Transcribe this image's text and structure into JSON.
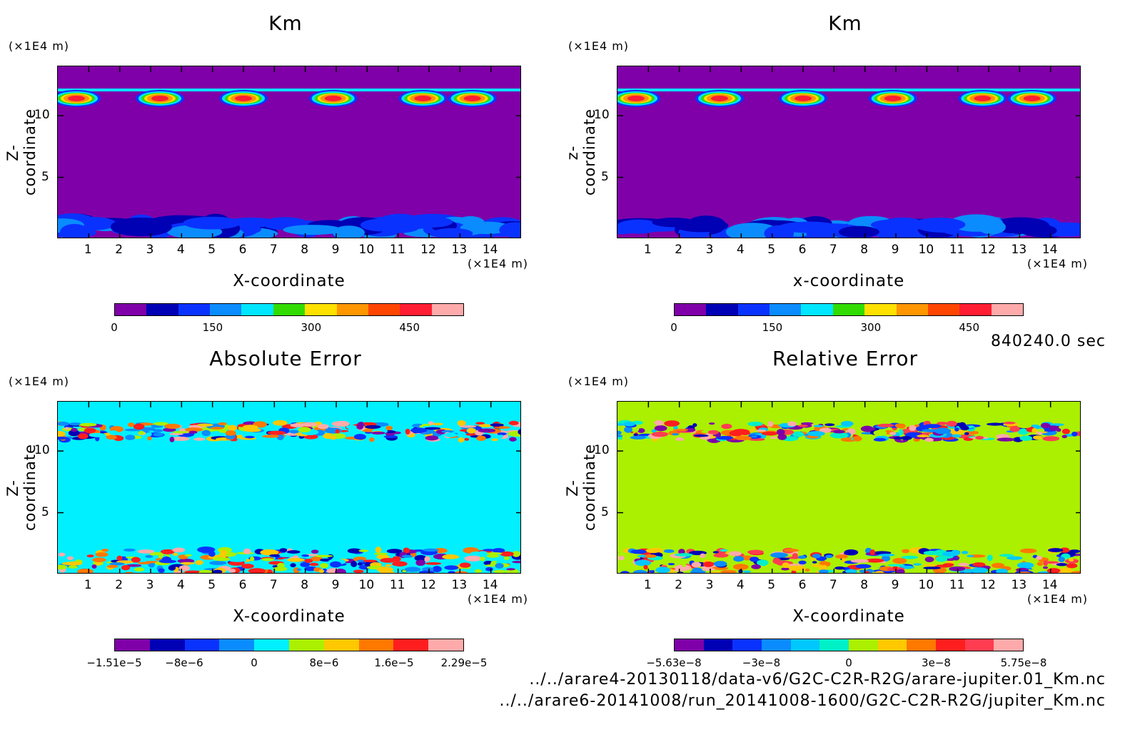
{
  "time_label": "840240.0 sec",
  "files": [
    "../../arare4-20130118/data-v6/G2C-C2R-R2G/arare-jupiter.01_Km.nc",
    "../../arare6-20141008/run_20141008-1600/G2C-C2R-R2G/jupiter_Km.nc"
  ],
  "chart_data": [
    {
      "type": "heatmap",
      "title": "Km",
      "xlabel": "X-coordinate",
      "ylabel": "Z-coordinate",
      "x_scale_label": "(×1E4 m)",
      "y_scale_label": "(×1E4 m)",
      "xlim": [
        0,
        15
      ],
      "ylim": [
        0,
        14
      ],
      "xticks": [
        1,
        2,
        3,
        4,
        5,
        6,
        7,
        8,
        9,
        10,
        11,
        12,
        13,
        14
      ],
      "yticks": [
        5,
        10
      ],
      "background": "#7f00a8",
      "colorbar": {
        "colors": [
          "#7f00a8",
          "#0000b4",
          "#0a32ff",
          "#0a8cff",
          "#00e6ff",
          "#32dc00",
          "#ffe100",
          "#ff9600",
          "#ff4600",
          "#ff1e32",
          "#ffaaaa"
        ],
        "ticks": [
          "0",
          "150",
          "300",
          "450"
        ]
      },
      "features": "convective plumes near z≈11–12, blue layer below z≈2"
    },
    {
      "type": "heatmap",
      "title": "Km",
      "xlabel": "x-coordinate",
      "ylabel": "z-coordinate",
      "x_scale_label": "(×1E4 m)",
      "y_scale_label": "(×1E4 m)",
      "xlim": [
        0,
        15
      ],
      "ylim": [
        0,
        14
      ],
      "xticks": [
        1,
        2,
        3,
        4,
        5,
        6,
        7,
        8,
        9,
        10,
        11,
        12,
        13,
        14
      ],
      "yticks": [
        5,
        10
      ],
      "background": "#7f00a8",
      "colorbar": {
        "colors": [
          "#7f00a8",
          "#0000b4",
          "#0a32ff",
          "#0a8cff",
          "#00e6ff",
          "#32dc00",
          "#ffe100",
          "#ff9600",
          "#ff4600",
          "#ff1e32",
          "#ffaaaa"
        ],
        "ticks": [
          "0",
          "150",
          "300",
          "450"
        ]
      },
      "features": "convective plumes near z≈11–12, blue layer below z≈2"
    },
    {
      "type": "heatmap",
      "title": "Absolute Error",
      "xlabel": "X-coordinate",
      "ylabel": "Z-coordinate",
      "x_scale_label": "(×1E4 m)",
      "y_scale_label": "(×1E4 m)",
      "xlim": [
        0,
        15
      ],
      "ylim": [
        0,
        14
      ],
      "xticks": [
        1,
        2,
        3,
        4,
        5,
        6,
        7,
        8,
        9,
        10,
        11,
        12,
        13,
        14
      ],
      "yticks": [
        5,
        10
      ],
      "background": "#00f0ff",
      "colorbar": {
        "colors": [
          "#7f00a8",
          "#0000b4",
          "#0a32ff",
          "#0a8cff",
          "#00f0ff",
          "#aaf000",
          "#ffc800",
          "#ff7800",
          "#ff1e1e",
          "#ffaaaa"
        ],
        "ticks": [
          "−1.51e−5",
          "−8e−6",
          "0",
          "8e−6",
          "1.6e−5",
          "2.29e−5"
        ]
      },
      "features": "noisy error bands near z≈11–12 and z≈0–2"
    },
    {
      "type": "heatmap",
      "title": "Relative Error",
      "xlabel": "X-coordinate",
      "ylabel": "Z-coordinate",
      "x_scale_label": "(×1E4 m)",
      "y_scale_label": "(×1E4 m)",
      "xlim": [
        0,
        15
      ],
      "ylim": [
        0,
        14
      ],
      "xticks": [
        1,
        2,
        3,
        4,
        5,
        6,
        7,
        8,
        9,
        10,
        11,
        12,
        13,
        14
      ],
      "yticks": [
        5,
        10
      ],
      "background": "#aaf000",
      "colorbar": {
        "colors": [
          "#7f00a8",
          "#0000b4",
          "#0a32ff",
          "#0a8cff",
          "#00c8ff",
          "#00f0c8",
          "#aaf000",
          "#ffc800",
          "#ff7800",
          "#ff1e1e",
          "#ff3c50",
          "#ffaaaa"
        ],
        "ticks": [
          "−5.63e−8",
          "−3e−8",
          "0",
          "3e−8",
          "5.75e−8"
        ]
      },
      "features": "noisy error bands near z≈11–12 and z≈0–2"
    }
  ]
}
